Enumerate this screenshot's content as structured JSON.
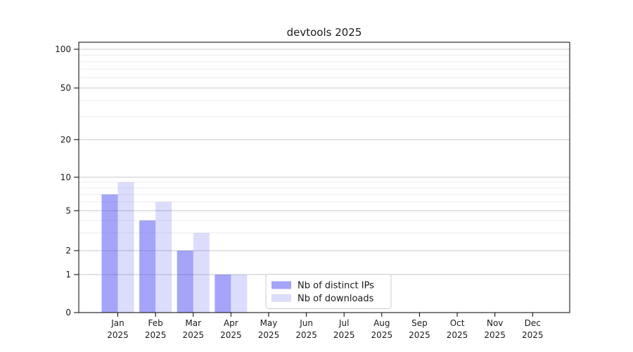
{
  "chart_data": {
    "type": "bar",
    "title": "devtools 2025",
    "x_categories": [
      "Jan",
      "Feb",
      "Mar",
      "Apr",
      "May",
      "Jun",
      "Jul",
      "Aug",
      "Sep",
      "Oct",
      "Nov",
      "Dec"
    ],
    "x_year_line": "2025",
    "series": [
      {
        "name": "Nb of distinct IPs",
        "color": "rgba(64,64,240,0.48)",
        "values": [
          7,
          4,
          2,
          1,
          0,
          0,
          0,
          0,
          0,
          0,
          0,
          0
        ]
      },
      {
        "name": "Nb of downloads",
        "color": "rgba(64,64,240,0.185)",
        "values": [
          9,
          6,
          3,
          1,
          0,
          0,
          0,
          0,
          0,
          0,
          0,
          0
        ]
      }
    ],
    "y_axis": {
      "scale": "symlog",
      "major_ticks": [
        0,
        1,
        2,
        5,
        10,
        20,
        50,
        100
      ],
      "minor_gridlines": [
        3,
        4,
        6,
        7,
        8,
        9,
        30,
        40,
        60,
        70,
        80,
        90
      ],
      "range": [
        0,
        100
      ]
    },
    "legend": {
      "position": "inside-bottom-center",
      "entries": [
        "Nb of distinct IPs",
        "Nb of downloads"
      ]
    },
    "grid": "on",
    "colors": {
      "grid_major": "#c7c7c7",
      "grid_minor": "#ebebeb",
      "spine": "#000000",
      "text": "#1a1a1a",
      "background": "#ffffff",
      "legend_border": "#cccccc"
    }
  }
}
